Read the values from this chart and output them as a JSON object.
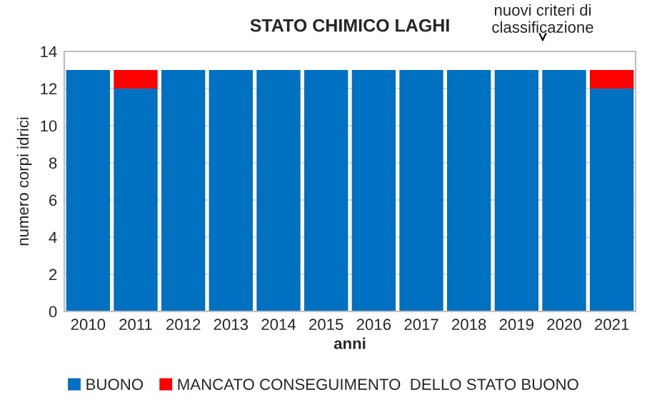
{
  "chart_data": {
    "type": "bar",
    "title": "STATO CHIMICO LAGHI",
    "xlabel": "anni",
    "ylabel": "numero corpi idrici",
    "categories": [
      "2010",
      "2011",
      "2012",
      "2013",
      "2014",
      "2015",
      "2016",
      "2017",
      "2018",
      "2019",
      "2020",
      "2021"
    ],
    "series": [
      {
        "name": "BUONO",
        "color": "#0070c0",
        "values": [
          13,
          12,
          13,
          13,
          13,
          13,
          13,
          13,
          13,
          13,
          13,
          12
        ]
      },
      {
        "name": "MANCATO CONSEGUIMENTO  DELLO STATO BUONO",
        "color": "#ff0000",
        "values": [
          0,
          1,
          0,
          0,
          0,
          0,
          0,
          0,
          0,
          0,
          0,
          1
        ]
      }
    ],
    "stacked": true,
    "ylim": [
      0,
      14
    ],
    "yticks": [
      0,
      2,
      4,
      6,
      8,
      10,
      12,
      14
    ],
    "grid": "y",
    "legend": "bottom",
    "annotations": [
      "nuovi criteri di\nclassificazione"
    ]
  }
}
